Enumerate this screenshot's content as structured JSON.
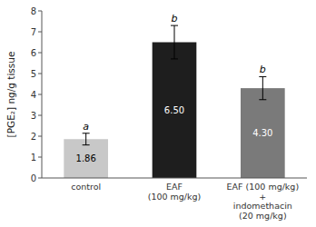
{
  "chart_data": {
    "type": "bar",
    "categories": [
      "control",
      "EAF\n(100 mg/kg)",
      "EAF (100 mg/kg)\n+\nindomethacin\n(20 mg/kg)"
    ],
    "values": [
      1.86,
      6.5,
      4.3
    ],
    "errors": [
      0.28,
      0.8,
      0.55
    ],
    "value_labels": [
      "1.86",
      "6.50",
      "4.30"
    ],
    "data_labels": true,
    "annotations": [
      "a",
      "b",
      "b"
    ],
    "colors": [
      "#c8c8c8",
      "#1e1e1e",
      "#7a7a7a"
    ],
    "ylabel": "[PGE₂] ng/g tissue",
    "ylim": [
      0,
      8
    ],
    "yticks": [
      0,
      1,
      2,
      3,
      4,
      5,
      6,
      7,
      8
    ],
    "grid": false
  }
}
